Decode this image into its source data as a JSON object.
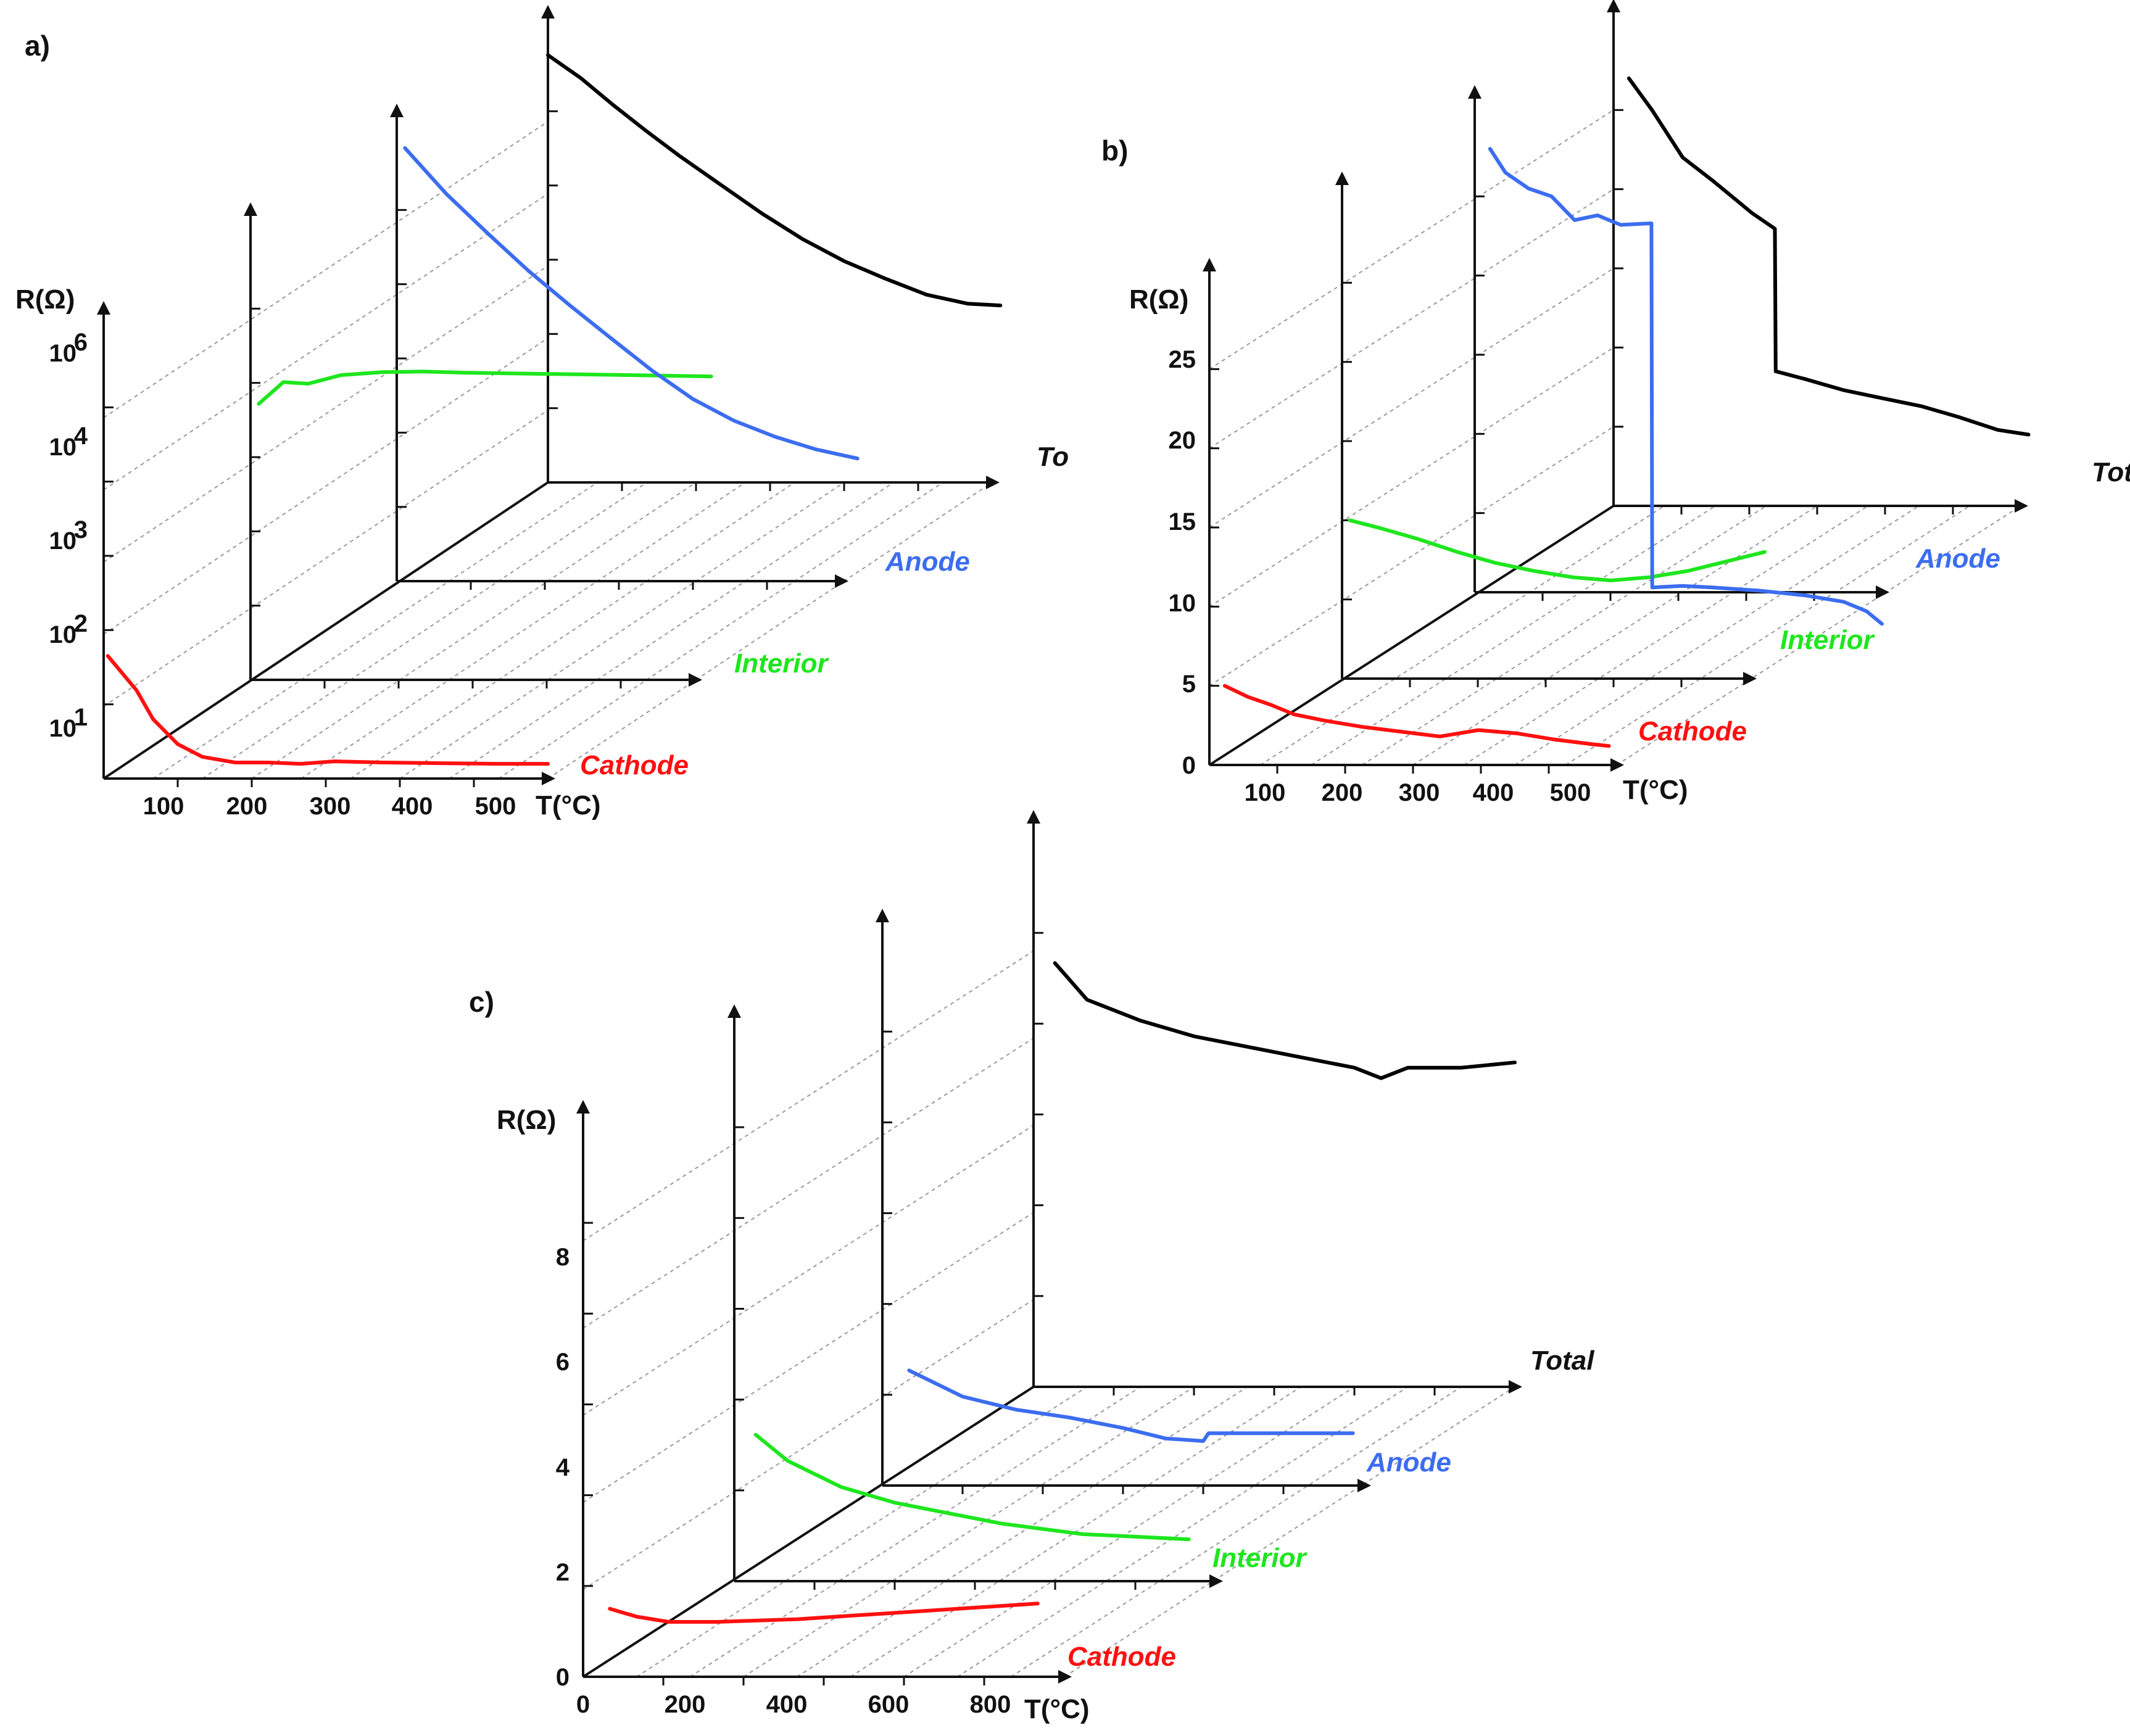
{
  "colors": {
    "Total": "#000000",
    "Anode": "#3c6df0",
    "Interior": "#1ee61e",
    "Cathode": "#ff1010",
    "axis": "#111111",
    "guide": "#9a9a9a"
  },
  "chart_data": [
    {
      "panel": "a)",
      "type": "line",
      "y_scale": "log",
      "ylabel": "R(Ω)",
      "xlabel": "T(°C)",
      "x_ticks": [
        "100",
        "200",
        "300",
        "400",
        "500"
      ],
      "y_ticks": [
        "10^1",
        "10^2",
        "10^3",
        "10^4",
        "10^6"
      ],
      "ylim": [
        3,
        3000000
      ],
      "xlim": [
        40,
        580
      ],
      "series_order": [
        "Cathode",
        "Interior",
        "Anode",
        "Total"
      ],
      "series": [
        {
          "name": "Cathode",
          "label": "Cathode",
          "x": [
            45,
            80,
            100,
            130,
            160,
            200,
            240,
            280,
            320,
            380,
            450,
            520,
            580
          ],
          "y": [
            150,
            50,
            20,
            9,
            6,
            5,
            5,
            4.8,
            5.2,
            5,
            4.9,
            4.8,
            4.8
          ]
        },
        {
          "name": "Interior",
          "label": "Interior",
          "x": [
            50,
            80,
            110,
            150,
            200,
            250,
            300,
            350,
            400,
            450,
            500,
            550,
            600
          ],
          "y": [
            20000,
            40000,
            38000,
            50000,
            55000,
            56000,
            54000,
            53000,
            52000,
            51000,
            50000,
            49000,
            48000
          ]
        },
        {
          "name": "Anode",
          "label": "Anode",
          "x": [
            50,
            100,
            150,
            200,
            250,
            300,
            350,
            400,
            450,
            500,
            550,
            600
          ],
          "y": [
            3000000,
            700000,
            200000,
            60000,
            20000,
            7000,
            2500,
            1000,
            500,
            300,
            200,
            150
          ]
        },
        {
          "name": "Total",
          "label": "To",
          "x": [
            40,
            80,
            120,
            160,
            200,
            250,
            300,
            350,
            400,
            450,
            500,
            550,
            590
          ],
          "y": [
            2500000,
            1200000,
            500000,
            220000,
            100000,
            40000,
            16000,
            7000,
            3500,
            2000,
            1200,
            900,
            850
          ]
        }
      ]
    },
    {
      "panel": "b)",
      "type": "line",
      "ylabel": "R(Ω)",
      "xlabel": "T(°C)",
      "x_ticks": [
        "100",
        "200",
        "300",
        "400",
        "500"
      ],
      "y_ticks": [
        "0",
        "5",
        "10",
        "15",
        "20",
        "25"
      ],
      "ylim": [
        0,
        30
      ],
      "xlim": [
        50,
        580
      ],
      "series_order": [
        "Cathode",
        "Interior",
        "Anode",
        "Total"
      ],
      "series": [
        {
          "name": "Cathode",
          "label": "Cathode",
          "x": [
            70,
            100,
            130,
            160,
            200,
            250,
            300,
            350,
            400,
            450,
            500,
            550,
            570
          ],
          "y": [
            5,
            4.3,
            3.8,
            3.2,
            2.8,
            2.4,
            2.1,
            1.8,
            2.2,
            2.0,
            1.6,
            1.3,
            1.2
          ]
        },
        {
          "name": "Interior",
          "label": "Interior",
          "x": [
            60,
            100,
            150,
            200,
            250,
            300,
            350,
            400,
            450,
            500,
            550,
            600
          ],
          "y": [
            10,
            9.5,
            8.8,
            8.0,
            7.3,
            6.8,
            6.4,
            6.2,
            6.4,
            6.8,
            7.4,
            8.0
          ]
        },
        {
          "name": "Anode",
          "label": "Anode",
          "x": [
            70,
            90,
            120,
            150,
            180,
            210,
            240,
            280,
            281,
            320,
            360,
            420,
            480,
            530,
            560,
            580
          ],
          "y": [
            28,
            26.5,
            25.5,
            25,
            23.5,
            23.8,
            23.2,
            23.3,
            0.3,
            0.4,
            0.3,
            0.1,
            -0.2,
            -0.6,
            -1.2,
            -2.0
          ]
        },
        {
          "name": "Total",
          "label": "Total",
          "x": [
            70,
            100,
            140,
            180,
            230,
            260,
            261,
            300,
            350,
            400,
            450,
            500,
            550,
            590
          ],
          "y": [
            27,
            25,
            22,
            20.5,
            18.5,
            17.5,
            8.5,
            8.0,
            7.3,
            6.8,
            6.3,
            5.6,
            4.8,
            4.5
          ]
        }
      ]
    },
    {
      "panel": "c)",
      "type": "line",
      "ylabel": "R(Ω)",
      "xlabel": "T(°C)",
      "x_ticks": [
        "0",
        "200",
        "400",
        "600",
        "800"
      ],
      "y_ticks": [
        "0",
        "2",
        "4",
        "6",
        "8"
      ],
      "ylim": [
        0,
        10
      ],
      "xlim": [
        0,
        900
      ],
      "series_order": [
        "Cathode",
        "Interior",
        "Anode",
        "Total"
      ],
      "series": [
        {
          "name": "Cathode",
          "label": "Cathode",
          "x": [
            50,
            100,
            160,
            250,
            400,
            550,
            700,
            850
          ],
          "y": [
            1.3,
            1.15,
            1.05,
            1.05,
            1.1,
            1.2,
            1.3,
            1.4
          ]
        },
        {
          "name": "Interior",
          "label": "Interior",
          "x": [
            40,
            100,
            200,
            300,
            400,
            500,
            650,
            850
          ],
          "y": [
            2.8,
            2.3,
            1.8,
            1.5,
            1.3,
            1.1,
            0.9,
            0.8
          ]
        },
        {
          "name": "Anode",
          "label": "Anode",
          "x": [
            50,
            150,
            250,
            350,
            450,
            530,
            600,
            610,
            700,
            800,
            880
          ],
          "y": [
            2.2,
            1.7,
            1.45,
            1.3,
            1.1,
            0.9,
            0.85,
            1.0,
            1.0,
            1.0,
            1.0
          ]
        },
        {
          "name": "Total",
          "label": "Total",
          "x": [
            40,
            100,
            200,
            300,
            400,
            500,
            600,
            650,
            700,
            750,
            800,
            900
          ],
          "y": [
            8.1,
            7.4,
            7.0,
            6.7,
            6.5,
            6.3,
            6.1,
            5.9,
            6.1,
            6.1,
            6.1,
            6.2
          ]
        }
      ]
    }
  ]
}
